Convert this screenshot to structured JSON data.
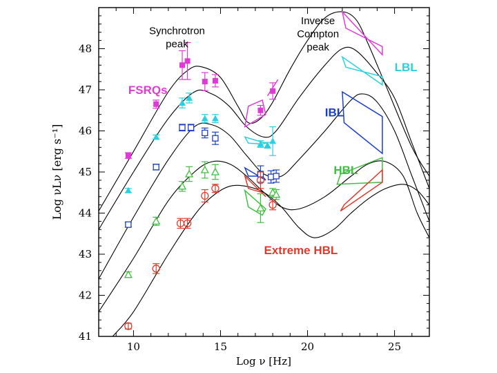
{
  "chart_data": {
    "type": "line",
    "title": "",
    "xlabel": "Log ν [Hz]",
    "ylabel": "Log νLν [erg s⁻¹]",
    "xlim": [
      8,
      27
    ],
    "ylim": [
      41,
      49
    ],
    "x_ticks": [
      10,
      15,
      20,
      25
    ],
    "x_tick_labels": [
      "10",
      "15",
      "20",
      "25"
    ],
    "y_ticks": [
      41,
      42,
      43,
      44,
      45,
      46,
      47,
      48
    ],
    "y_tick_labels": [
      "41",
      "42",
      "43",
      "44",
      "45",
      "46",
      "47",
      "48"
    ],
    "grid": false,
    "annotations": [
      {
        "lines": [
          "Synchrotron",
          "peak"
        ],
        "x": 12.5,
        "y": 48.35
      },
      {
        "lines": [
          "Inverse",
          "Compton",
          "peak"
        ],
        "x": 20.6,
        "y": 48.6
      }
    ],
    "model_curves": [
      {
        "name": "FSRQs model",
        "points": [
          [
            8,
            44.05
          ],
          [
            10,
            45.5
          ],
          [
            12,
            46.95
          ],
          [
            13.2,
            47.5
          ],
          [
            14,
            47.55
          ],
          [
            15,
            47.3
          ],
          [
            16,
            46.6
          ],
          [
            16.6,
            46.2
          ],
          [
            17.3,
            46.3
          ],
          [
            18,
            46.7
          ],
          [
            19,
            47.5
          ],
          [
            20,
            48.2
          ],
          [
            21,
            48.75
          ],
          [
            22,
            48.9
          ],
          [
            22.8,
            48.7
          ],
          [
            23.5,
            48.1
          ],
          [
            24.5,
            47.1
          ],
          [
            26,
            45.6
          ],
          [
            27,
            44.9
          ]
        ]
      },
      {
        "name": "LBL model",
        "points": [
          [
            8,
            43.6
          ],
          [
            10,
            45.0
          ],
          [
            12,
            46.3
          ],
          [
            13.5,
            46.95
          ],
          [
            14.5,
            46.9
          ],
          [
            15.5,
            46.6
          ],
          [
            16.5,
            46.1
          ],
          [
            17.5,
            45.85
          ],
          [
            18.2,
            46.0
          ],
          [
            19.5,
            46.8
          ],
          [
            21,
            47.6
          ],
          [
            22,
            48.0
          ],
          [
            22.8,
            47.95
          ],
          [
            24,
            47.4
          ],
          [
            25,
            46.8
          ],
          [
            26,
            45.7
          ],
          [
            27,
            44.6
          ]
        ]
      },
      {
        "name": "IBL model",
        "points": [
          [
            8,
            42.4
          ],
          [
            10,
            43.9
          ],
          [
            12,
            45.3
          ],
          [
            13.5,
            46.1
          ],
          [
            14.5,
            46.15
          ],
          [
            15.5,
            45.9
          ],
          [
            16.5,
            45.4
          ],
          [
            17.5,
            44.95
          ],
          [
            18.5,
            44.9
          ],
          [
            19.5,
            45.3
          ],
          [
            21,
            46.0
          ],
          [
            22.5,
            46.75
          ],
          [
            23.2,
            46.9
          ],
          [
            24,
            46.7
          ],
          [
            25,
            46.0
          ],
          [
            26,
            44.9
          ],
          [
            27,
            43.8
          ]
        ]
      },
      {
        "name": "HBL model",
        "points": [
          [
            8,
            41.6
          ],
          [
            10,
            42.9
          ],
          [
            12,
            44.3
          ],
          [
            13.5,
            45.0
          ],
          [
            14.5,
            45.25
          ],
          [
            15.5,
            45.2
          ],
          [
            16.5,
            44.9
          ],
          [
            17.5,
            44.5
          ],
          [
            18.5,
            44.15
          ],
          [
            19.5,
            44.1
          ],
          [
            21,
            44.4
          ],
          [
            22.5,
            44.9
          ],
          [
            23.5,
            45.2
          ],
          [
            24.5,
            45.25
          ],
          [
            25.5,
            44.9
          ],
          [
            26.3,
            44.0
          ],
          [
            27,
            43.4
          ]
        ]
      },
      {
        "name": "Extreme HBL model",
        "points": [
          [
            8.8,
            41.0
          ],
          [
            10,
            41.6
          ],
          [
            12,
            43.0
          ],
          [
            13.5,
            43.95
          ],
          [
            14.5,
            44.4
          ],
          [
            15.5,
            44.65
          ],
          [
            16.5,
            44.65
          ],
          [
            17.5,
            44.5
          ],
          [
            18.5,
            44.15
          ],
          [
            19.5,
            43.65
          ],
          [
            20.4,
            43.4
          ],
          [
            21.5,
            43.6
          ],
          [
            22.5,
            44.0
          ],
          [
            23.5,
            44.35
          ],
          [
            24.5,
            44.6
          ],
          [
            25.5,
            44.7
          ],
          [
            26.3,
            44.55
          ],
          [
            27,
            44.2
          ]
        ]
      }
    ],
    "series": [
      {
        "name": "FSRQs",
        "label_x": 9.7,
        "label_y": 46.9,
        "color": "#e03ad6",
        "marker": "square-filled",
        "points": [
          [
            9.7,
            45.4,
            0.07
          ],
          [
            11.3,
            46.65,
            0.1
          ],
          [
            12.8,
            47.6,
            0.35
          ],
          [
            13.1,
            47.7,
            0.45
          ],
          [
            14.1,
            47.2,
            0.22
          ],
          [
            14.7,
            47.22,
            0.15
          ],
          [
            17.3,
            46.5,
            0.12
          ],
          [
            18,
            46.97,
            0.2
          ]
        ],
        "spectra": [
          [
            [
              16.4,
              46.1
            ],
            [
              16.6,
              46.6
            ],
            [
              17.4,
              46.75
            ],
            [
              17.6,
              46.4
            ]
          ],
          [
            [
              17.7,
              46.85
            ],
            [
              18.3,
              47.25
            ]
          ],
          [
            [
              22.0,
              48.9
            ],
            [
              22.2,
              48.5
            ],
            [
              24.3,
              48.05
            ],
            [
              24.3,
              47.85
            ]
          ]
        ]
      },
      {
        "name": "LBL",
        "label_x": 25.0,
        "label_y": 47.45,
        "color": "#2ad0e0",
        "marker": "triangle-filled",
        "points": [
          [
            9.7,
            44.55,
            0.05
          ],
          [
            11.3,
            45.85,
            0.05
          ],
          [
            12.8,
            46.68,
            0.12
          ],
          [
            13.2,
            46.8,
            0.12
          ],
          [
            14.1,
            46.3,
            0.1
          ],
          [
            14.7,
            46.3,
            0.1
          ],
          [
            17.3,
            45.68,
            0.08
          ],
          [
            17.7,
            45.65,
            0.07
          ],
          [
            18,
            45.75,
            0.35
          ]
        ],
        "spectra": [
          [
            [
              16.4,
              45.85
            ],
            [
              16.6,
              45.7
            ],
            [
              17.4,
              45.68
            ],
            [
              17.6,
              45.7
            ]
          ],
          [
            [
              22.0,
              47.8
            ],
            [
              22.2,
              47.55
            ],
            [
              24.3,
              47.32
            ],
            [
              24.3,
              47.12
            ]
          ]
        ]
      },
      {
        "name": "IBL",
        "label_x": 21.0,
        "label_y": 46.35,
        "color": "#1a3ec8",
        "marker": "square-open",
        "points": [
          [
            9.7,
            43.72,
            0.05
          ],
          [
            11.3,
            45.12,
            0.07
          ],
          [
            12.8,
            46.08,
            0.08
          ],
          [
            13.3,
            46.08,
            0.08
          ],
          [
            14.1,
            45.95,
            0.12
          ],
          [
            14.7,
            45.82,
            0.15
          ],
          [
            17.3,
            44.95,
            0.2
          ],
          [
            17.9,
            44.88,
            0.15
          ],
          [
            18.2,
            44.9,
            0.15
          ]
        ],
        "spectra": [
          [
            [
              16.4,
              45.1
            ],
            [
              16.6,
              44.9
            ],
            [
              17.4,
              44.9
            ],
            [
              17.6,
              44.8
            ]
          ],
          [
            [
              22.0,
              46.95
            ],
            [
              22.1,
              46.2
            ],
            [
              24.3,
              45.45
            ],
            [
              24.3,
              46.35
            ]
          ]
        ]
      },
      {
        "name": "HBL",
        "label_x": 21.5,
        "label_y": 44.95,
        "color": "#3fbf3f",
        "marker": "triangle-open",
        "points": [
          [
            9.7,
            42.5,
            0.07
          ],
          [
            11.3,
            43.8,
            0.1
          ],
          [
            12.8,
            44.65,
            0.12
          ],
          [
            13.2,
            44.95,
            0.18
          ],
          [
            14.1,
            45.05,
            0.2
          ],
          [
            14.7,
            45.0,
            0.18
          ],
          [
            17.3,
            44.12,
            0.35
          ],
          [
            18,
            44.5,
            0.1
          ],
          [
            18.2,
            44.45,
            0.12
          ]
        ],
        "spectra": [
          [
            [
              16.4,
              44.55
            ],
            [
              16.6,
              44.15
            ],
            [
              17.4,
              43.95
            ],
            [
              17.6,
              44.1
            ]
          ],
          [
            [
              21.7,
              44.7
            ],
            [
              21.9,
              44.95
            ],
            [
              24.3,
              45.35
            ],
            [
              24.3,
              44.75
            ]
          ]
        ]
      },
      {
        "name": "Extreme HBL",
        "label_x": 17.5,
        "label_y": 43.0,
        "color": "#e03a2a",
        "marker": "circle-open",
        "points": [
          [
            9.7,
            41.25,
            0.07
          ],
          [
            11.3,
            42.65,
            0.12
          ],
          [
            12.7,
            43.75,
            0.12
          ],
          [
            13.1,
            43.75,
            0.12
          ],
          [
            14.1,
            44.42,
            0.15
          ],
          [
            14.7,
            44.6,
            0.1
          ],
          [
            17.3,
            44.8,
            0.2
          ],
          [
            18,
            44.2,
            0.12
          ]
        ],
        "spectra": [
          [
            [
              16.4,
              44.9
            ],
            [
              16.6,
              44.6
            ],
            [
              17.4,
              44.5
            ],
            [
              17.6,
              44.4
            ]
          ],
          [
            [
              21.9,
              44.05
            ],
            [
              22.1,
              44.2
            ],
            [
              24.3,
              45.05
            ],
            [
              24.3,
              44.75
            ]
          ]
        ]
      }
    ]
  }
}
